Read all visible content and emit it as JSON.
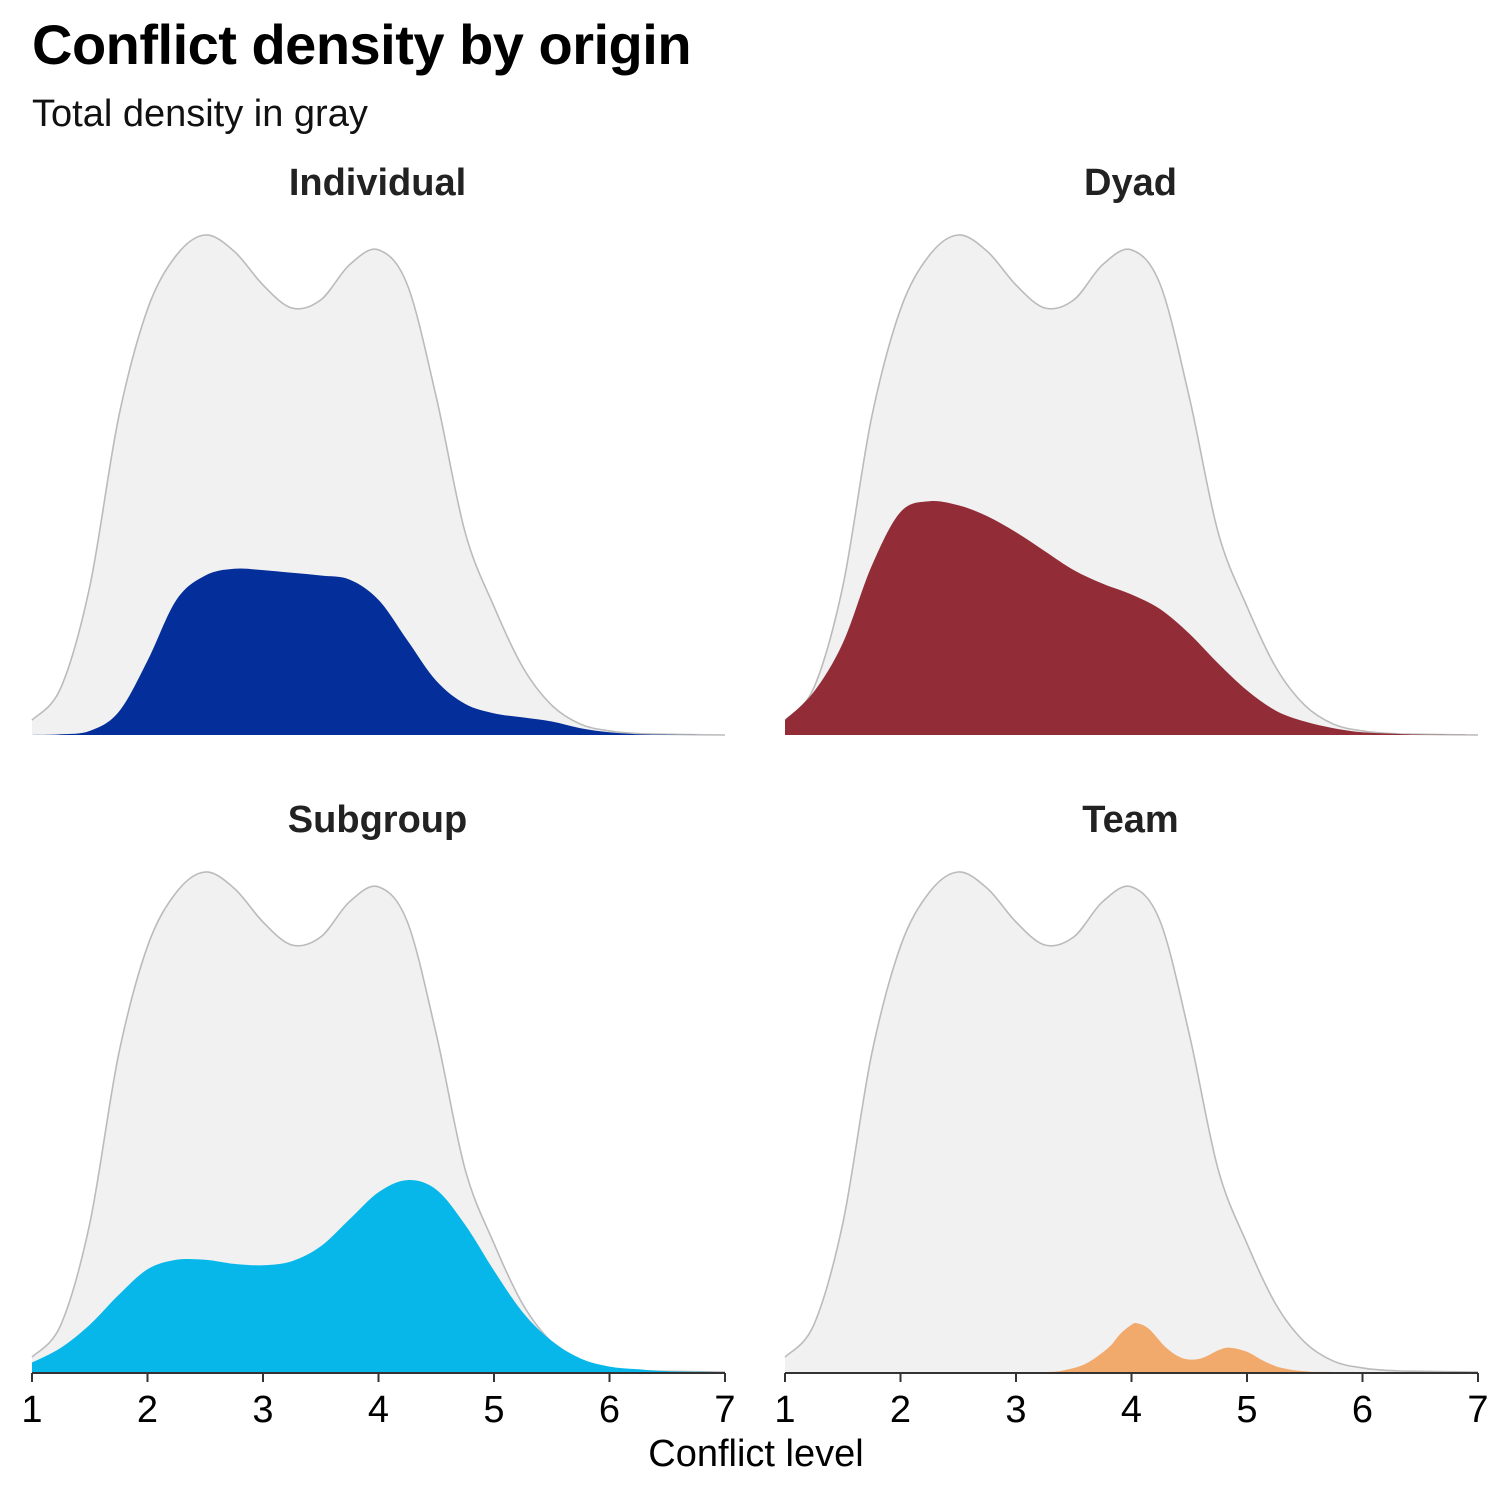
{
  "title": "Conflict density by origin",
  "subtitle": "Total density in gray",
  "chart_data": {
    "type": "area",
    "title": "Conflict density by origin",
    "subtitle": "Total density in gray",
    "xlabel": "Conflict level",
    "ylabel": "",
    "xlim": [
      1,
      7
    ],
    "xticks": [
      1,
      2,
      3,
      4,
      5,
      6,
      7
    ],
    "ylim": [
      0,
      0.37
    ],
    "grid": false,
    "total": {
      "color": "#f1f1f1",
      "stroke": "#bbbbbb",
      "x": [
        1.0,
        1.25,
        1.5,
        1.75,
        2.0,
        2.25,
        2.5,
        2.75,
        3.0,
        3.25,
        3.5,
        3.75,
        4.0,
        4.25,
        4.5,
        4.75,
        5.0,
        5.25,
        5.5,
        5.75,
        6.0,
        6.25,
        6.5,
        7.0
      ],
      "y": [
        0.011,
        0.035,
        0.11,
        0.235,
        0.315,
        0.355,
        0.37,
        0.358,
        0.333,
        0.316,
        0.322,
        0.348,
        0.359,
        0.333,
        0.25,
        0.15,
        0.095,
        0.05,
        0.022,
        0.008,
        0.003,
        0.001,
        0.0005,
        0.0
      ]
    },
    "panels": [
      {
        "name": "Individual",
        "color": "#042e99",
        "x": [
          1.0,
          1.25,
          1.5,
          1.75,
          2.0,
          2.25,
          2.5,
          2.75,
          3.0,
          3.25,
          3.5,
          3.75,
          4.0,
          4.25,
          4.5,
          4.75,
          5.0,
          5.25,
          5.5,
          5.75,
          6.0,
          6.25,
          6.5,
          7.0
        ],
        "y": [
          0.0,
          0.0005,
          0.003,
          0.017,
          0.055,
          0.1,
          0.118,
          0.123,
          0.122,
          0.12,
          0.118,
          0.115,
          0.1,
          0.07,
          0.04,
          0.023,
          0.016,
          0.013,
          0.01,
          0.005,
          0.002,
          0.0005,
          0.0002,
          0.0
        ]
      },
      {
        "name": "Dyad",
        "color": "#922d38",
        "x": [
          1.0,
          1.25,
          1.5,
          1.75,
          2.0,
          2.25,
          2.5,
          2.75,
          3.0,
          3.25,
          3.5,
          3.75,
          4.0,
          4.25,
          4.5,
          4.75,
          5.0,
          5.25,
          5.5,
          5.75,
          6.0,
          6.25,
          6.5,
          7.0
        ],
        "y": [
          0.011,
          0.032,
          0.068,
          0.125,
          0.165,
          0.173,
          0.17,
          0.162,
          0.15,
          0.136,
          0.122,
          0.112,
          0.104,
          0.093,
          0.075,
          0.053,
          0.033,
          0.018,
          0.01,
          0.005,
          0.002,
          0.001,
          0.0003,
          0.0
        ]
      },
      {
        "name": "Subgroup",
        "color": "#08b7ea",
        "x": [
          1.0,
          1.25,
          1.5,
          1.75,
          2.0,
          2.25,
          2.5,
          2.75,
          3.0,
          3.25,
          3.5,
          3.75,
          4.0,
          4.25,
          4.5,
          4.75,
          5.0,
          5.25,
          5.5,
          5.75,
          6.0,
          6.25,
          6.5,
          7.0
        ],
        "y": [
          0.007,
          0.018,
          0.035,
          0.057,
          0.076,
          0.083,
          0.083,
          0.08,
          0.079,
          0.082,
          0.093,
          0.113,
          0.133,
          0.142,
          0.135,
          0.109,
          0.075,
          0.044,
          0.023,
          0.01,
          0.004,
          0.002,
          0.0006,
          0.0
        ]
      },
      {
        "name": "Team",
        "color": "#f1a96c",
        "x": [
          1.0,
          3.0,
          3.25,
          3.4,
          3.6,
          3.8,
          3.9,
          4.0,
          4.05,
          4.15,
          4.3,
          4.45,
          4.6,
          4.75,
          4.85,
          5.0,
          5.15,
          5.3,
          5.5,
          5.75,
          7.0
        ],
        "y": [
          0.0,
          0.0,
          0.0,
          0.001,
          0.006,
          0.018,
          0.028,
          0.035,
          0.036,
          0.032,
          0.018,
          0.01,
          0.01,
          0.016,
          0.018,
          0.015,
          0.008,
          0.003,
          0.0005,
          0.0,
          0.0
        ]
      }
    ]
  }
}
